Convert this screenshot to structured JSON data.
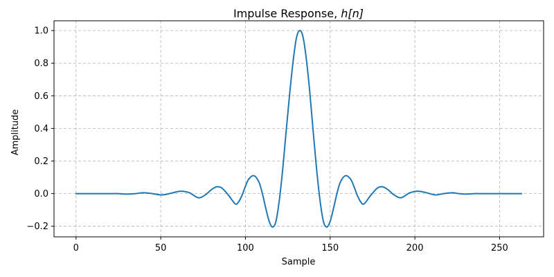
{
  "chart_data": {
    "type": "line",
    "title": "Impulse Response, ",
    "title_math": "h[n]",
    "xlabel": "Sample",
    "ylabel": "Amplitude",
    "xlim": [
      -13,
      276
    ],
    "ylim": [
      -0.265,
      1.06
    ],
    "grid": true,
    "x_ticks": [
      0,
      50,
      100,
      150,
      200,
      250
    ],
    "y_ticks": [
      -0.2,
      0.0,
      0.2,
      0.4,
      0.6,
      0.8,
      1.0
    ],
    "x_tick_labels": [
      "0",
      "50",
      "100",
      "150",
      "200",
      "250"
    ],
    "y_tick_labels": [
      "−0.2",
      "0.0",
      "0.2",
      "0.4",
      "0.6",
      "0.8",
      "1.0"
    ],
    "series": [
      {
        "color": "#1f77b4",
        "x": [
          0,
          10,
          20,
          25,
          30,
          35,
          40,
          45,
          50,
          53,
          57,
          62,
          67,
          72,
          76,
          80,
          83,
          86,
          90,
          94,
          96,
          98,
          100,
          102,
          105,
          108,
          110,
          112,
          114,
          116,
          118,
          120,
          122,
          124,
          126,
          128,
          130,
          132,
          134,
          136,
          138,
          140,
          142,
          144,
          146,
          148,
          150,
          152,
          154,
          156,
          159,
          162,
          164,
          166,
          168,
          170,
          174,
          178,
          181,
          184,
          188,
          192,
          197,
          202,
          207,
          212,
          217,
          222,
          226,
          230,
          235,
          240,
          250,
          263
        ],
        "y": [
          0.0,
          0.0,
          0.0,
          0.0,
          -0.003,
          0.0,
          0.005,
          0.0,
          -0.008,
          -0.005,
          0.005,
          0.015,
          0.005,
          -0.025,
          -0.01,
          0.025,
          0.042,
          0.035,
          -0.01,
          -0.063,
          -0.05,
          -0.01,
          0.045,
          0.09,
          0.11,
          0.07,
          0.0,
          -0.09,
          -0.17,
          -0.205,
          -0.17,
          -0.04,
          0.15,
          0.38,
          0.6,
          0.8,
          0.95,
          1.0,
          0.96,
          0.82,
          0.62,
          0.38,
          0.15,
          -0.04,
          -0.17,
          -0.205,
          -0.17,
          -0.09,
          0.0,
          0.07,
          0.11,
          0.09,
          0.045,
          -0.01,
          -0.05,
          -0.063,
          -0.01,
          0.035,
          0.042,
          0.025,
          -0.01,
          -0.025,
          0.005,
          0.015,
          0.005,
          -0.008,
          0.0,
          0.005,
          0.0,
          -0.003,
          0.0,
          0.0,
          0.0,
          0.0
        ]
      }
    ]
  }
}
